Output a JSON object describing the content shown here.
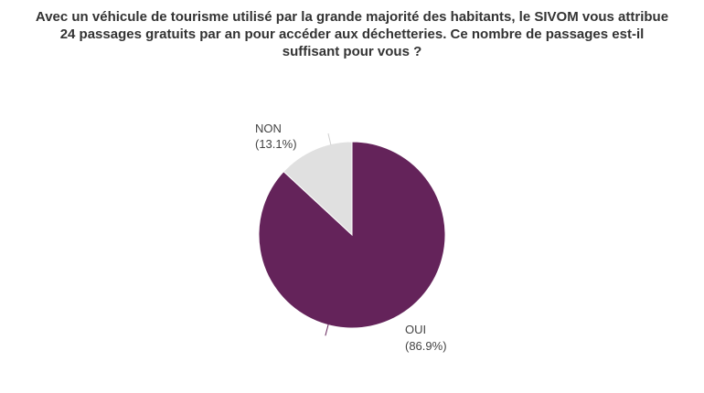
{
  "chart_data": {
    "type": "pie",
    "title_lines": [
      "Avec un véhicule de tourisme utilisé par la grande majorité des habitants, le SIVOM vous attribue",
      "24 passages gratuits par an pour accéder aux déchetteries. Ce nombre de passages est-il",
      "suffisant pour vous ?"
    ],
    "slices": [
      {
        "label": "OUI",
        "value": 86.9,
        "pct_label": "(86.9%)",
        "color": "#64235a"
      },
      {
        "label": "NON",
        "value": 13.1,
        "pct_label": "(13.1%)",
        "color": "#e0e0e0"
      }
    ],
    "start_angle_deg": 0,
    "direction": "clockwise",
    "legend": "none"
  }
}
